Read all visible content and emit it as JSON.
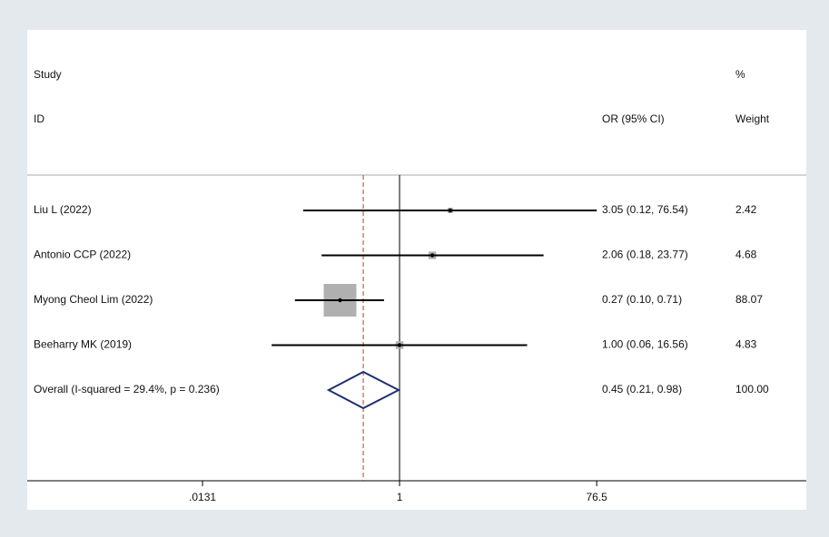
{
  "chart_data": {
    "type": "forest",
    "headers": {
      "study": "Study",
      "id": "ID",
      "estimate": "OR (95% CI)",
      "percent": "%",
      "weight": "Weight"
    },
    "studies": {
      "names": [
        "Liu L (2022)",
        "Antonio CCP (2022)",
        "Myong Cheol Lim (2022)",
        "Beeharry MK (2019)"
      ],
      "values": [
        3.05,
        2.06,
        0.27,
        1.0
      ],
      "ci_low": [
        0.12,
        0.18,
        0.1,
        0.06
      ],
      "ci_high": [
        76.54,
        23.77,
        0.71,
        16.56
      ],
      "value_labels": [
        "3.05 (0.12, 76.54)",
        "2.06 (0.18, 23.77)",
        "0.27 (0.10, 0.71)",
        "1.00 (0.06, 16.56)"
      ],
      "weights": [
        2.42,
        4.68,
        88.07,
        4.83
      ],
      "weight_labels": [
        "2.42",
        "4.68",
        "88.07",
        "4.83"
      ]
    },
    "overall": {
      "name": "Overall  (I-squared = 29.4%, p = 0.236)",
      "value": 0.45,
      "ci_low": 0.21,
      "ci_high": 0.98,
      "value_label": "0.45 (0.21, 0.98)",
      "weight": 100,
      "weight_label": "100.00"
    },
    "xscale": "log",
    "xlim": [
      0.000277,
      7700
    ],
    "xticks": [
      {
        "value": 0.0131,
        "label": ".0131"
      },
      1,
      76.5
    ],
    "null_line": 1,
    "square_color": "#b0b0b0",
    "diamond_color": "#1f2f6e",
    "overall_line_color": "#c0392b"
  }
}
